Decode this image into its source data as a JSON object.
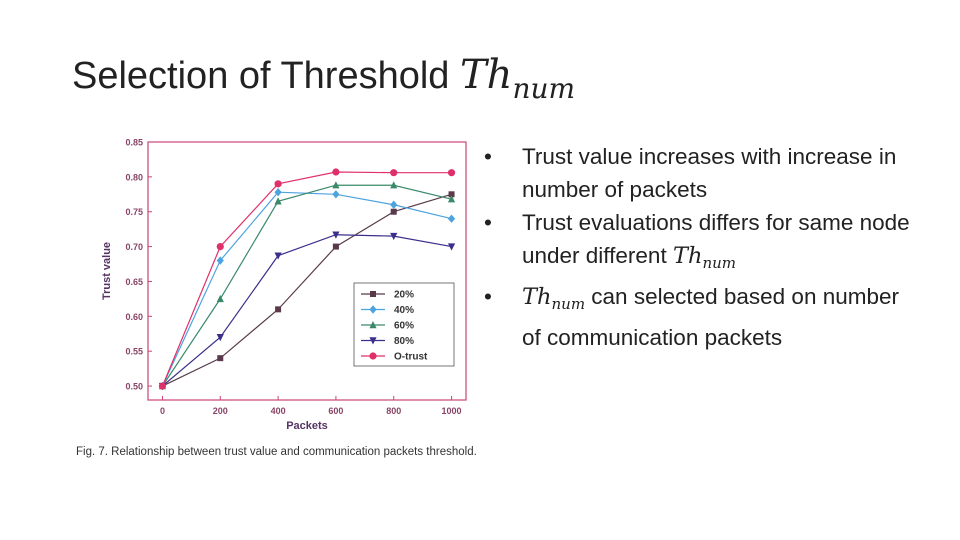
{
  "slide": {
    "title_prefix": "Selection of Threshold",
    "title_math_base": "Th",
    "title_math_sub": "num"
  },
  "bullets": [
    {
      "before": "Trust value increases with increase in number of packets",
      "math_base": "",
      "math_sub": "",
      "after": ""
    },
    {
      "before": "Trust evaluations differs for same node under different ",
      "math_base": "Th",
      "math_sub": "num",
      "after": ""
    },
    {
      "before": "",
      "math_base": "Th",
      "math_sub": "num",
      "after": " can selected based on number of communication packets"
    }
  ],
  "bullet_glyph": "•",
  "caption": "Fig. 7. Relationship between trust value and communication packets threshold.",
  "chart_data": {
    "type": "line",
    "title": "",
    "xlabel": "Packets",
    "ylabel": "Trust value",
    "x": [
      0,
      200,
      400,
      600,
      800,
      1000
    ],
    "x_ticks": [
      "0",
      "200",
      "400",
      "600",
      "800",
      "1000"
    ],
    "xlim": [
      -50,
      1050
    ],
    "ylim": [
      0.48,
      0.85
    ],
    "y_ticks": [
      "0.50",
      "0.55",
      "0.60",
      "0.65",
      "0.70",
      "0.75",
      "0.80",
      "0.85"
    ],
    "y_tick_values": [
      0.5,
      0.55,
      0.6,
      0.65,
      0.7,
      0.75,
      0.8,
      0.85
    ],
    "grid": false,
    "legend_position": "lower-right",
    "colors": {
      "axis": "#cc4477",
      "tick_text": "#884466",
      "label_text": "#553366"
    },
    "series": [
      {
        "name": "20%",
        "color": "#5a3a4a",
        "marker": "square",
        "values": [
          0.5,
          0.54,
          0.61,
          0.7,
          0.75,
          0.775
        ]
      },
      {
        "name": "40%",
        "color": "#4da3e0",
        "marker": "diamond",
        "values": [
          0.5,
          0.68,
          0.778,
          0.775,
          0.76,
          0.74
        ]
      },
      {
        "name": "60%",
        "color": "#3a8a6a",
        "marker": "triangle-up",
        "values": [
          0.5,
          0.625,
          0.765,
          0.788,
          0.788,
          0.768
        ]
      },
      {
        "name": "80%",
        "color": "#3a2f8a",
        "marker": "triangle-down",
        "values": [
          0.5,
          0.57,
          0.687,
          0.717,
          0.715,
          0.7
        ]
      },
      {
        "name": "O-trust",
        "color": "#e0306a",
        "marker": "circle",
        "values": [
          0.5,
          0.7,
          0.79,
          0.807,
          0.806,
          0.806
        ]
      }
    ]
  }
}
